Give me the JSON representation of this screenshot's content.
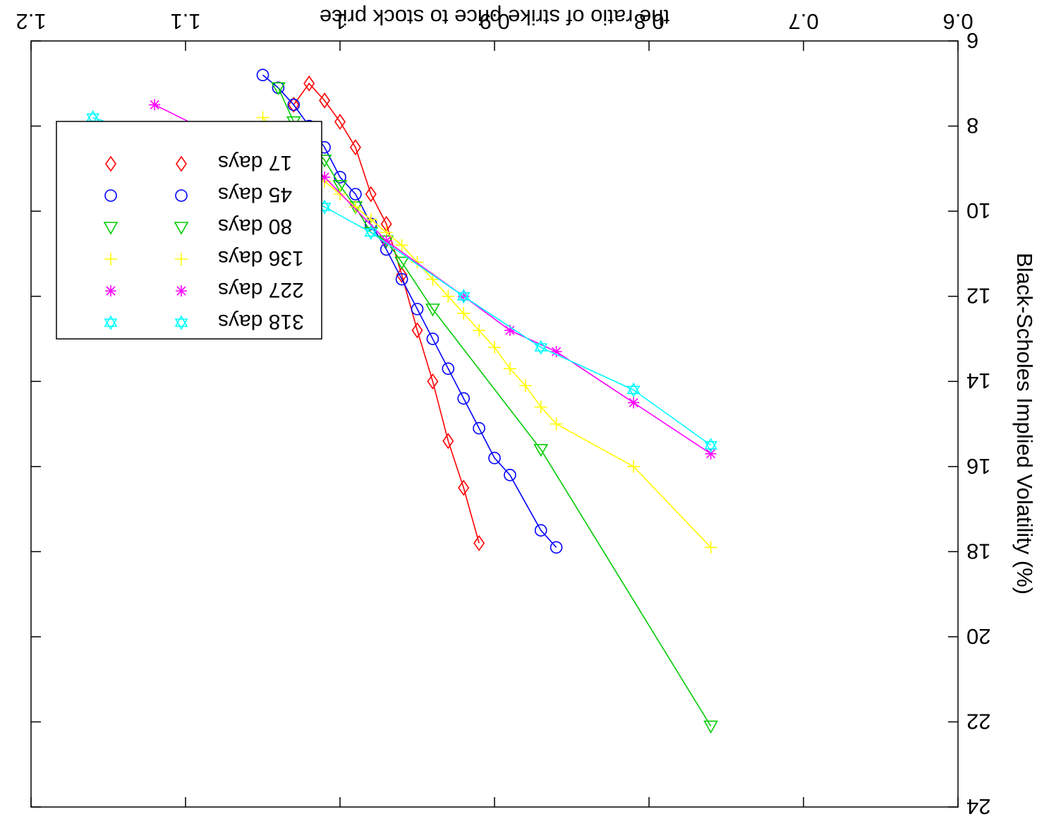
{
  "chart_data": {
    "type": "line",
    "xlabel": "the ratio of strike price to stock price",
    "ylabel": "Black-Scholes Implied Volatility (%)",
    "xlim": [
      0.6,
      1.2
    ],
    "ylim": [
      6,
      24
    ],
    "x_ticks": [
      "0.6",
      "0.7",
      "0.8",
      "0.9",
      "1",
      "1.1",
      "1.2"
    ],
    "y_ticks": [
      "6",
      "8",
      "10",
      "12",
      "14",
      "16",
      "18",
      "20",
      "22",
      "24"
    ],
    "grid": false,
    "legend_position": "bottom-left",
    "series": [
      {
        "name": "17 days",
        "color": "#ff0000",
        "marker": "diamond",
        "points": [
          [
            0.91,
            17.8
          ],
          [
            0.92,
            16.5
          ],
          [
            0.93,
            15.4
          ],
          [
            0.94,
            14.0
          ],
          [
            0.95,
            12.8
          ],
          [
            0.96,
            11.5
          ],
          [
            0.97,
            10.3
          ],
          [
            0.98,
            9.6
          ],
          [
            0.99,
            8.5
          ],
          [
            1.0,
            7.9
          ],
          [
            1.01,
            7.4
          ],
          [
            1.02,
            7.0
          ],
          [
            1.03,
            7.5
          ]
        ]
      },
      {
        "name": "45 days",
        "color": "#0000ff",
        "marker": "circle",
        "points": [
          [
            0.86,
            17.9
          ],
          [
            0.87,
            17.5
          ],
          [
            0.89,
            16.2
          ],
          [
            0.9,
            15.8
          ],
          [
            0.91,
            15.1
          ],
          [
            0.92,
            14.4
          ],
          [
            0.93,
            13.7
          ],
          [
            0.94,
            13.0
          ],
          [
            0.95,
            12.3
          ],
          [
            0.96,
            11.6
          ],
          [
            0.97,
            10.9
          ],
          [
            0.98,
            10.3
          ],
          [
            0.99,
            9.6
          ],
          [
            1.0,
            9.2
          ],
          [
            1.01,
            8.5
          ],
          [
            1.02,
            8.0
          ],
          [
            1.03,
            7.5
          ],
          [
            1.04,
            7.1
          ],
          [
            1.05,
            6.8
          ]
        ]
      },
      {
        "name": "80 days",
        "color": "#00cc00",
        "marker": "triangle",
        "points": [
          [
            0.76,
            22.1
          ],
          [
            0.87,
            15.6
          ],
          [
            0.94,
            12.3
          ],
          [
            0.96,
            11.2
          ],
          [
            0.97,
            10.7
          ],
          [
            0.98,
            10.5
          ],
          [
            0.99,
            9.9
          ],
          [
            1.0,
            9.4
          ],
          [
            1.01,
            8.8
          ],
          [
            1.02,
            8.4
          ],
          [
            1.03,
            7.9
          ],
          [
            1.04,
            7.1
          ]
        ]
      },
      {
        "name": "136 days",
        "color": "#ffff00",
        "marker": "plus",
        "points": [
          [
            0.76,
            17.9
          ],
          [
            0.81,
            16.0
          ],
          [
            0.86,
            15.0
          ],
          [
            0.87,
            14.6
          ],
          [
            0.88,
            14.1
          ],
          [
            0.89,
            13.7
          ],
          [
            0.9,
            13.2
          ],
          [
            0.91,
            12.8
          ],
          [
            0.92,
            12.4
          ],
          [
            0.93,
            12.0
          ],
          [
            0.94,
            11.6
          ],
          [
            0.95,
            11.2
          ],
          [
            0.96,
            10.8
          ],
          [
            0.97,
            10.5
          ],
          [
            0.98,
            10.2
          ],
          [
            0.99,
            9.9
          ],
          [
            1.0,
            9.6
          ],
          [
            1.01,
            9.3
          ],
          [
            1.02,
            8.9
          ],
          [
            1.03,
            8.5
          ],
          [
            1.04,
            8.2
          ],
          [
            1.05,
            7.8
          ]
        ]
      },
      {
        "name": "227 days",
        "color": "#ff00ff",
        "marker": "asterisk",
        "points": [
          [
            0.76,
            15.7
          ],
          [
            0.81,
            14.5
          ],
          [
            0.86,
            13.3
          ],
          [
            0.89,
            12.8
          ],
          [
            0.92,
            12.0
          ],
          [
            0.97,
            10.7
          ],
          [
            1.01,
            9.2
          ],
          [
            1.07,
            8.4
          ],
          [
            1.12,
            7.5
          ]
        ]
      },
      {
        "name": "318 days",
        "color": "#00ffff",
        "marker": "star",
        "points": [
          [
            0.76,
            15.5
          ],
          [
            0.81,
            14.2
          ],
          [
            0.87,
            13.2
          ],
          [
            0.92,
            12.0
          ],
          [
            0.98,
            10.5
          ],
          [
            1.01,
            9.9
          ],
          [
            1.06,
            9.2
          ],
          [
            1.11,
            8.4
          ],
          [
            1.16,
            7.8
          ]
        ]
      }
    ]
  }
}
